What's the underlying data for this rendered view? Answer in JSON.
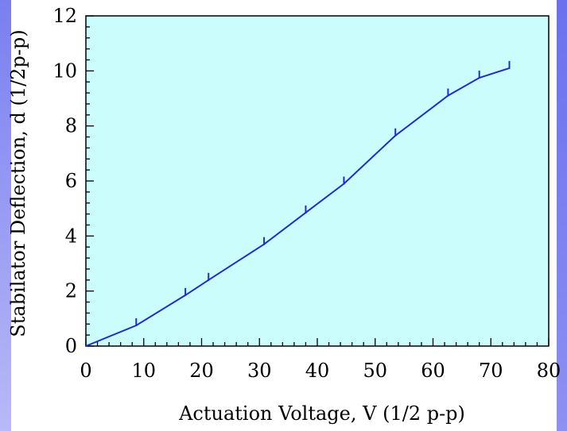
{
  "chart_data": {
    "type": "line",
    "xlabel": "Actuation Voltage, V (1/2 p-p)",
    "ylabel": "Stabilator Deflection, d (1/2p-p)",
    "xlim": [
      0,
      80
    ],
    "ylim": [
      0,
      12
    ],
    "xticks": [
      "0",
      "10",
      "20",
      "30",
      "40",
      "50",
      "60",
      "70",
      "80"
    ],
    "yticks": [
      "0",
      "2",
      "4",
      "6",
      "8",
      "10",
      "12"
    ],
    "grid": false,
    "colors": {
      "line": "#1f2bd8",
      "plot_bg": "#ccfdfd",
      "axis": "#000000"
    },
    "series": [
      {
        "x": [
          0,
          8.7,
          17.2,
          21.2,
          30.8,
          38.0,
          44.6,
          53.5,
          62.6,
          68.0,
          73.2
        ],
        "y": [
          0,
          0.75,
          1.85,
          2.4,
          3.7,
          4.85,
          5.9,
          7.65,
          9.1,
          9.75,
          10.1
        ]
      }
    ]
  }
}
